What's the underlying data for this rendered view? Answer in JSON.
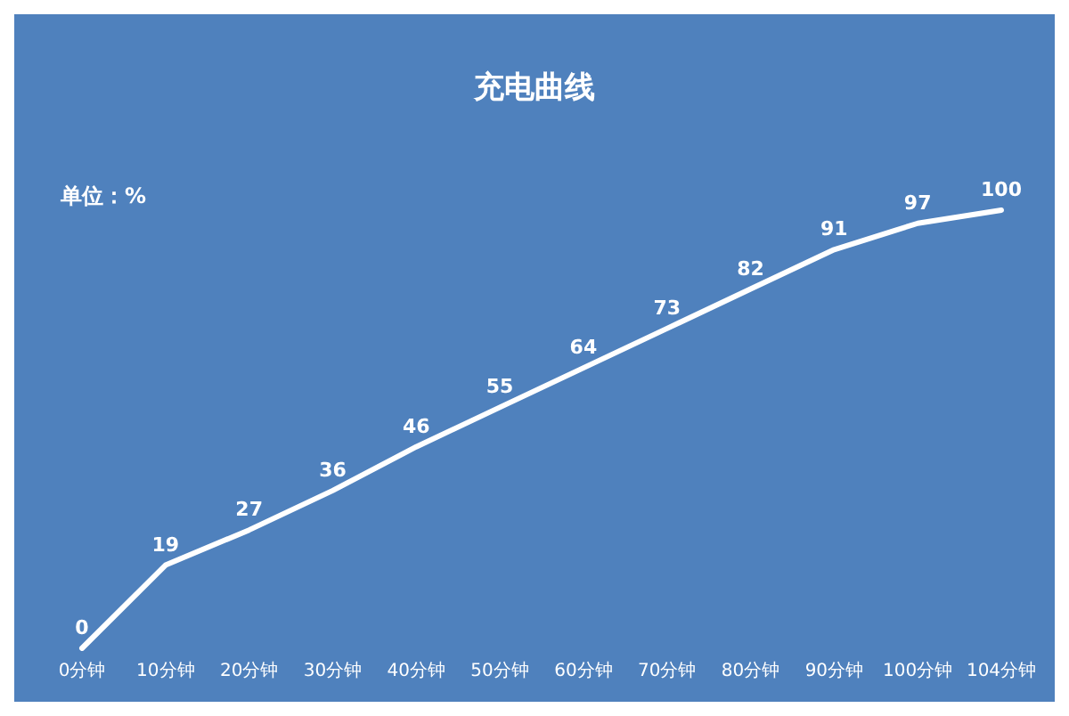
{
  "chart_data": {
    "type": "line",
    "title": "充电曲线",
    "ylabel": "单位：%",
    "categories": [
      "0分钟",
      "10分钟",
      "20分钟",
      "30分钟",
      "40分钟",
      "50分钟",
      "60分钟",
      "70分钟",
      "80分钟",
      "90分钟",
      "100分钟",
      "104分钟"
    ],
    "values": [
      0,
      19,
      27,
      36,
      46,
      55,
      64,
      73,
      82,
      91,
      97,
      100
    ],
    "color": "#ffffff",
    "data_labels": true,
    "marker": "none",
    "line_style": "solid",
    "grid": false
  }
}
